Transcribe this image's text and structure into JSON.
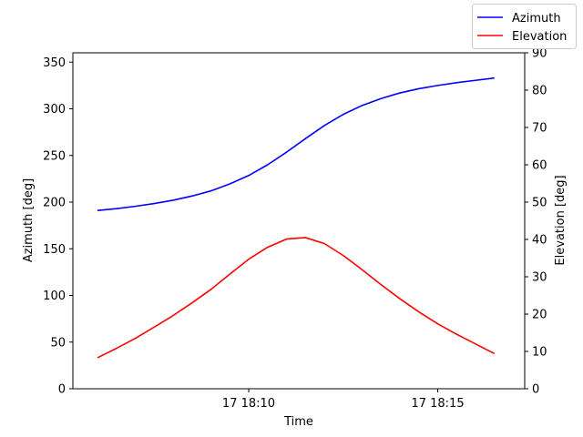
{
  "chart_data": {
    "type": "line",
    "xlabel": "Time",
    "x_ticks": [
      "17 18:10",
      "17 18:15"
    ],
    "x_tick_minutes": [
      10,
      15
    ],
    "xlim": [
      5.35,
      17.3
    ],
    "x_minutes": [
      6.0,
      6.5,
      7.0,
      7.5,
      8.0,
      8.5,
      9.0,
      9.5,
      10.0,
      10.5,
      11.0,
      11.5,
      12.0,
      12.5,
      13.0,
      13.5,
      14.0,
      14.5,
      15.0,
      15.5,
      16.0,
      16.5
    ],
    "left_axis": {
      "label": "Azimuth [deg]",
      "ylim": [
        0,
        360
      ],
      "ticks": [
        0,
        50,
        100,
        150,
        200,
        250,
        300,
        350
      ]
    },
    "right_axis": {
      "label": "Elevation [deg]",
      "ylim": [
        0,
        90
      ],
      "ticks": [
        0,
        10,
        20,
        30,
        40,
        50,
        60,
        70,
        80,
        90
      ]
    },
    "series": [
      {
        "name": "Azimuth",
        "color": "#0000ff",
        "axis": "left",
        "values": [
          191,
          193,
          195.5,
          198.5,
          202,
          206.5,
          212,
          219.5,
          228.5,
          240,
          253.5,
          268,
          282,
          294,
          303.5,
          311,
          317,
          321.5,
          325,
          328,
          330.5,
          333
        ]
      },
      {
        "name": "Elevation",
        "color": "#ff0000",
        "axis": "right",
        "values": [
          8.3,
          10.8,
          13.5,
          16.5,
          19.6,
          23,
          26.6,
          30.7,
          34.7,
          37.9,
          40.1,
          40.5,
          38.9,
          35.7,
          31.9,
          27.9,
          24.1,
          20.6,
          17.4,
          14.6,
          12.0,
          9.4
        ]
      }
    ],
    "legend": {
      "placement": "top-right",
      "entries": [
        "Azimuth",
        "Elevation"
      ]
    },
    "grid": false
  }
}
